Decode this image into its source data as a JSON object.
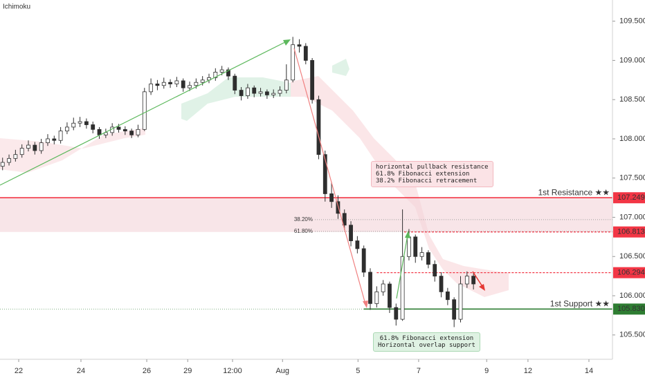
{
  "chart_data": {
    "type": "candlestick",
    "title": "Ichimoku",
    "xlim": [
      -0.58,
      18.41
    ],
    "xticks": [
      {
        "value": 0,
        "label": "22"
      },
      {
        "value": 1.93,
        "label": "24"
      },
      {
        "value": 3.97,
        "label": "26"
      },
      {
        "value": 5.24,
        "label": "29"
      },
      {
        "value": 6.63,
        "label": "12:00"
      },
      {
        "value": 8.18,
        "label": "Aug"
      },
      {
        "value": 10.52,
        "label": "5"
      },
      {
        "value": 12.4,
        "label": "7"
      },
      {
        "value": 14.51,
        "label": "9"
      },
      {
        "value": 15.79,
        "label": "12"
      },
      {
        "value": 17.68,
        "label": "14"
      }
    ],
    "ylim": [
      105.19,
      109.77
    ],
    "yticks": [
      {
        "value": 105.5,
        "label": "105.500"
      },
      {
        "value": 106,
        "label": "106.000"
      },
      {
        "value": 106.5,
        "label": "106.500"
      },
      {
        "value": 107,
        "label": "107.000"
      },
      {
        "value": 107.5,
        "label": "107.500"
      },
      {
        "value": 108,
        "label": "108.000"
      },
      {
        "value": 108.5,
        "label": "108.500"
      },
      {
        "value": 109,
        "label": "109.000"
      },
      {
        "value": 109.5,
        "label": "109.500"
      }
    ],
    "up_color": "#ffffff",
    "down_color": "#2e2e2e",
    "x": [
      -0.5,
      -0.3,
      -0.1,
      0.1,
      0.3,
      0.5,
      0.7,
      0.9,
      1.1,
      1.3,
      1.5,
      1.7,
      1.9,
      2.1,
      2.3,
      2.5,
      2.7,
      2.9,
      3.1,
      3.3,
      3.5,
      3.7,
      3.9,
      4.1,
      4.3,
      4.5,
      4.7,
      4.9,
      5.1,
      5.3,
      5.5,
      5.7,
      5.9,
      6.1,
      6.3,
      6.5,
      6.7,
      6.9,
      7.1,
      7.3,
      7.5,
      7.7,
      7.9,
      8.1,
      8.3,
      8.5,
      8.7,
      8.9,
      9.1,
      9.3,
      9.5,
      9.7,
      9.9,
      10.1,
      10.3,
      10.5,
      10.7,
      10.9,
      11.1,
      11.3,
      11.5,
      11.7,
      11.9,
      12.1,
      12.3,
      12.5,
      12.7,
      12.9,
      13.1,
      13.3,
      13.5,
      13.7,
      13.9,
      14.1
    ],
    "open": [
      107.65,
      107.7,
      107.75,
      107.8,
      107.88,
      107.92,
      107.85,
      107.95,
      108.0,
      107.98,
      108.1,
      108.15,
      108.2,
      108.22,
      108.18,
      108.12,
      108.05,
      108.08,
      108.15,
      108.12,
      108.1,
      108.05,
      108.12,
      108.6,
      108.7,
      108.68,
      108.72,
      108.7,
      108.74,
      108.65,
      108.68,
      108.72,
      108.75,
      108.78,
      108.85,
      108.88,
      108.8,
      108.62,
      108.55,
      108.65,
      108.58,
      108.6,
      108.56,
      108.58,
      108.62,
      108.75,
      109.2,
      109.18,
      109.0,
      108.5,
      107.8,
      107.3,
      107.2,
      107.05,
      106.9,
      106.7,
      106.6,
      106.3,
      105.9,
      106.05,
      106.15,
      105.85,
      105.7,
      106.5,
      106.75,
      106.5,
      106.55,
      106.4,
      106.25,
      106.05,
      105.95,
      105.7,
      106.15,
      106.25
    ],
    "high": [
      107.76,
      107.8,
      107.86,
      107.93,
      107.98,
      107.96,
      108.0,
      108.06,
      108.04,
      108.15,
      108.21,
      108.27,
      108.28,
      108.26,
      108.22,
      108.15,
      108.13,
      108.2,
      108.19,
      108.16,
      108.13,
      108.18,
      108.65,
      108.77,
      108.75,
      108.78,
      108.76,
      108.79,
      108.77,
      108.73,
      108.77,
      108.8,
      108.83,
      108.9,
      108.93,
      108.91,
      108.83,
      108.66,
      108.7,
      108.68,
      108.65,
      108.63,
      108.63,
      108.67,
      108.95,
      109.3,
      109.27,
      109.22,
      109.03,
      108.55,
      107.85,
      107.45,
      107.28,
      107.1,
      106.95,
      106.76,
      106.64,
      106.35,
      106.12,
      106.2,
      106.18,
      105.9,
      107.1,
      106.85,
      106.78,
      106.62,
      106.58,
      106.45,
      106.3,
      106.1,
      105.98,
      106.25,
      106.31,
      106.29
    ],
    "low": [
      107.6,
      107.66,
      107.71,
      107.76,
      107.84,
      107.8,
      107.81,
      107.91,
      107.93,
      107.94,
      108.06,
      108.11,
      108.15,
      108.13,
      108.07,
      108.0,
      108.01,
      108.04,
      108.08,
      108.05,
      108.01,
      108.02,
      108.1,
      108.56,
      108.62,
      108.64,
      108.65,
      108.66,
      108.6,
      108.61,
      108.64,
      108.68,
      108.71,
      108.74,
      108.81,
      108.75,
      108.57,
      108.49,
      108.51,
      108.53,
      108.54,
      108.51,
      108.52,
      108.54,
      108.58,
      108.72,
      109.1,
      108.95,
      108.45,
      107.74,
      107.2,
      107.12,
      106.98,
      106.84,
      106.63,
      106.54,
      106.24,
      105.82,
      105.85,
      106.0,
      105.78,
      105.62,
      105.68,
      106.45,
      106.42,
      106.45,
      106.35,
      106.18,
      105.98,
      105.88,
      105.6,
      105.66,
      106.1,
      106.08
    ],
    "close": [
      107.7,
      107.75,
      107.8,
      107.88,
      107.92,
      107.85,
      107.95,
      108.0,
      107.98,
      108.1,
      108.15,
      108.2,
      108.22,
      108.18,
      108.12,
      108.05,
      108.08,
      108.15,
      108.12,
      108.1,
      108.05,
      108.12,
      108.6,
      108.7,
      108.68,
      108.72,
      108.7,
      108.74,
      108.65,
      108.68,
      108.72,
      108.75,
      108.78,
      108.85,
      108.88,
      108.8,
      108.62,
      108.55,
      108.65,
      108.58,
      108.6,
      108.56,
      108.58,
      108.62,
      108.75,
      109.2,
      109.18,
      109.0,
      108.5,
      107.8,
      107.3,
      107.2,
      107.05,
      106.9,
      106.7,
      106.6,
      106.3,
      105.9,
      106.05,
      106.15,
      105.85,
      105.7,
      106.5,
      106.75,
      106.5,
      106.55,
      106.4,
      106.25,
      106.05,
      105.95,
      105.7,
      106.15,
      106.25,
      106.15
    ],
    "levels": [
      {
        "name": "1st Resistance ★★",
        "value": 107.249,
        "color": "#f23645",
        "style": "solid"
      },
      {
        "value": 106.813,
        "color": "#f23645",
        "style": "dashed",
        "x0": 11.95
      },
      {
        "value": 106.294,
        "color": "#f23645",
        "style": "dashed",
        "x0": 11.1
      },
      {
        "name": "1st Support ★★",
        "value": {
          "value": 105.83,
          "label": "105.830"
        },
        "color": "#2e7d32",
        "style": "solid",
        "x0": 10.7
      }
    ],
    "fib_levels": [
      {
        "name": "38.20%",
        "value": 106.97
      },
      {
        "name": "61.80%",
        "value": 106.82
      }
    ],
    "annotations": [
      [
        "horizontal pullback resistance",
        "61.8% Fibonacci extension",
        "38.2% Fibonacci retracement"
      ],
      [
        "61.8% Fibonacci extension",
        "Horizontal overlap support"
      ]
    ]
  }
}
